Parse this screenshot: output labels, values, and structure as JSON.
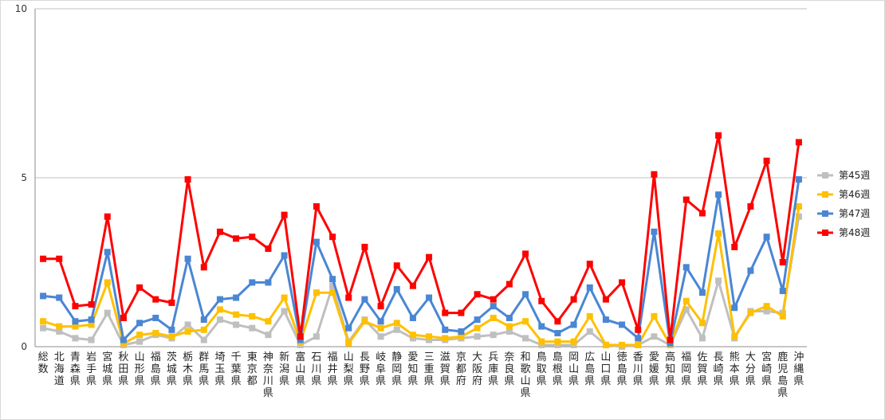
{
  "chart_data": {
    "type": "line",
    "title": "",
    "xlabel": "",
    "ylabel": "",
    "ylim": [
      0,
      10
    ],
    "yticks": [
      0,
      5,
      10
    ],
    "grid": true,
    "legend_position": "right",
    "categories": [
      "総数",
      "北海道",
      "青森県",
      "岩手県",
      "宮城県",
      "秋田県",
      "山形県",
      "福島県",
      "茨城県",
      "栃木県",
      "群馬県",
      "埼玉県",
      "千葉県",
      "東京都",
      "神奈川県",
      "新潟県",
      "富山県",
      "石川県",
      "福井県",
      "山梨県",
      "長野県",
      "岐阜県",
      "静岡県",
      "愛知県",
      "三重県",
      "滋賀県",
      "京都府",
      "大阪府",
      "兵庫県",
      "奈良県",
      "和歌山県",
      "鳥取県",
      "島根県",
      "岡山県",
      "広島県",
      "山口県",
      "徳島県",
      "香川県",
      "愛媛県",
      "高知県",
      "福岡県",
      "佐賀県",
      "長崎県",
      "熊本県",
      "大分県",
      "宮崎県",
      "鹿児島県",
      "沖縄県"
    ],
    "series": [
      {
        "name": "第45週",
        "color": "#bfbfbf",
        "values": [
          0.55,
          0.45,
          0.25,
          0.2,
          1.0,
          0.05,
          0.15,
          0.35,
          0.25,
          0.65,
          0.2,
          0.8,
          0.65,
          0.55,
          0.35,
          1.05,
          0.05,
          0.3,
          1.8,
          0.15,
          0.8,
          0.3,
          0.5,
          0.25,
          0.2,
          0.2,
          0.25,
          0.3,
          0.35,
          0.45,
          0.25,
          0.05,
          0.05,
          0.05,
          0.45,
          0.05,
          0.0,
          0.05,
          0.3,
          0.05,
          1.1,
          0.25,
          1.95,
          0.25,
          1.05,
          1.05,
          1.0,
          3.85
        ]
      },
      {
        "name": "第46週",
        "color": "#ffc000",
        "values": [
          0.75,
          0.6,
          0.6,
          0.65,
          1.9,
          0.1,
          0.35,
          0.4,
          0.3,
          0.45,
          0.5,
          1.1,
          0.95,
          0.9,
          0.75,
          1.45,
          0.15,
          1.6,
          1.6,
          0.1,
          0.75,
          0.55,
          0.7,
          0.35,
          0.3,
          0.25,
          0.3,
          0.55,
          0.85,
          0.6,
          0.75,
          0.15,
          0.15,
          0.15,
          0.9,
          0.05,
          0.05,
          0.05,
          0.9,
          0.05,
          1.35,
          0.7,
          3.35,
          0.3,
          1.0,
          1.2,
          0.9,
          4.15
        ]
      },
      {
        "name": "第47週",
        "color": "#4a86d4",
        "values": [
          1.5,
          1.45,
          0.75,
          0.8,
          2.8,
          0.2,
          0.7,
          0.85,
          0.5,
          2.6,
          0.8,
          1.4,
          1.45,
          1.9,
          1.9,
          2.7,
          0.2,
          3.1,
          2.0,
          0.55,
          1.4,
          0.75,
          1.7,
          0.85,
          1.45,
          0.5,
          0.45,
          0.8,
          1.2,
          0.85,
          1.55,
          0.6,
          0.4,
          0.65,
          1.75,
          0.8,
          0.65,
          0.25,
          3.4,
          0.1,
          2.35,
          1.6,
          4.5,
          1.15,
          2.25,
          3.25,
          1.65,
          4.95
        ]
      },
      {
        "name": "第48週",
        "color": "#ff0000",
        "values": [
          2.6,
          2.6,
          1.2,
          1.25,
          3.85,
          0.85,
          1.75,
          1.4,
          1.3,
          4.95,
          2.35,
          3.4,
          3.2,
          3.25,
          2.9,
          3.9,
          0.3,
          4.15,
          3.25,
          1.45,
          2.95,
          1.2,
          2.4,
          1.8,
          2.65,
          1.0,
          1.0,
          1.55,
          1.4,
          1.85,
          2.75,
          1.35,
          0.75,
          1.4,
          2.45,
          1.4,
          1.9,
          0.5,
          5.1,
          0.2,
          4.35,
          3.95,
          6.25,
          2.95,
          4.15,
          5.5,
          2.5,
          6.05
        ]
      }
    ]
  }
}
